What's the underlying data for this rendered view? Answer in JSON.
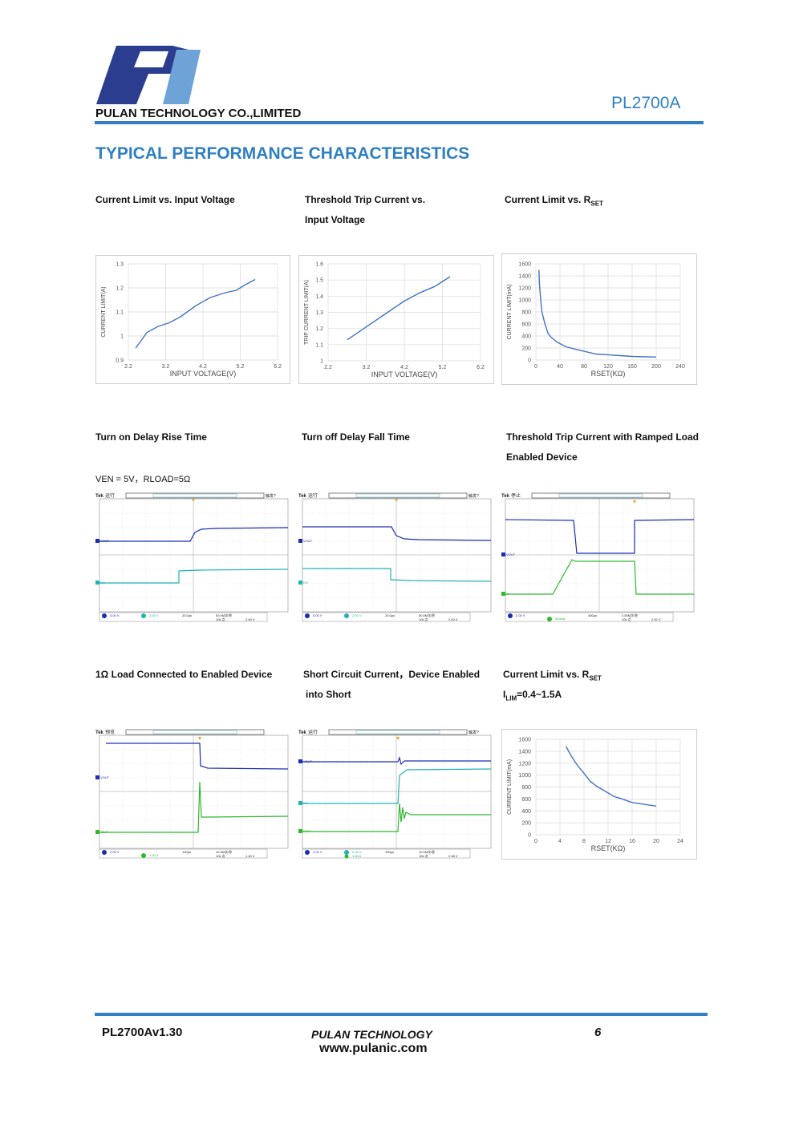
{
  "header": {
    "company": "PULAN TECHNOLOGY CO.,LIMITED",
    "part_number": "PL2700A",
    "brand_color": "#2f7fc1"
  },
  "section_title": "TYPICAL PERFORMANCE CHARACTERISTICS",
  "captions": {
    "c1": "Current Limit vs. Input Voltage",
    "c2a": "Threshold Trip Current vs.",
    "c2b": "Input Voltage",
    "c3": "Current Limit vs. R",
    "c3_sub": "SET",
    "c4": "Turn on Delay Rise Time",
    "c4_note": "VEN = 5V，RLOAD=5Ω",
    "c5": "Turn off Delay Fall Time",
    "c6a": "Threshold Trip Current with Ramped Load",
    "c6b": "Enabled Device",
    "c7": "1Ω Load Connected to Enabled Device",
    "c8a": "Short Circuit Current，Device Enabled",
    "c8b": "into Short",
    "c9": "Current Limit vs. R",
    "c9_sub": "SET",
    "c9_note": "I",
    "c9_note_sub": "LIM",
    "c9_note_rest": "=0.4~1.5A"
  },
  "chart_data": [
    {
      "type": "line",
      "xlabel": "INPUT VOLTAGE(V)",
      "ylabel": "CURRENT LIMIT(A)",
      "xticks": [
        "2.2",
        "3.2",
        "4.2",
        "5.2",
        "6.2"
      ],
      "yticks": [
        "0.9",
        "1",
        "1.1",
        "1.2",
        "1.3"
      ],
      "xlim": [
        2.2,
        6.2
      ],
      "ylim": [
        0.9,
        1.3
      ],
      "x": [
        2.4,
        2.7,
        3.0,
        3.3,
        3.6,
        4.0,
        4.4,
        4.8,
        5.1,
        5.3,
        5.6
      ],
      "y": [
        0.95,
        1.015,
        1.04,
        1.055,
        1.08,
        1.125,
        1.16,
        1.18,
        1.19,
        1.21,
        1.235
      ]
    },
    {
      "type": "line",
      "xlabel": "INPUT VOLTAGE(V)",
      "ylabel": "TRIP CURRENT LIMIT(A)",
      "xticks": [
        "2.2",
        "3.2",
        "4.2",
        "5.2",
        "6.2"
      ],
      "yticks": [
        "1",
        "1.1",
        "1.2",
        "1.3",
        "1.4",
        "1.5",
        "1.6"
      ],
      "xlim": [
        2.2,
        6.2
      ],
      "ylim": [
        1.0,
        1.6
      ],
      "x": [
        2.7,
        3.2,
        3.7,
        4.2,
        4.6,
        5.0,
        5.4
      ],
      "y": [
        1.13,
        1.21,
        1.29,
        1.37,
        1.42,
        1.46,
        1.52
      ]
    },
    {
      "type": "line",
      "xlabel": "RSET(KΩ)",
      "ylabel": "CURRENT LIMIT(mA)",
      "xticks": [
        "0",
        "40",
        "80",
        "120",
        "160",
        "200",
        "240"
      ],
      "yticks": [
        "0",
        "200",
        "400",
        "600",
        "800",
        "1000",
        "1200",
        "1400",
        "1600"
      ],
      "xlim": [
        0,
        240
      ],
      "ylim": [
        0,
        1600
      ],
      "x": [
        5,
        6,
        8,
        10,
        15,
        20,
        25,
        35,
        50,
        70,
        100,
        130,
        160,
        200
      ],
      "y": [
        1500,
        1250,
        1000,
        800,
        600,
        450,
        380,
        300,
        220,
        170,
        100,
        80,
        60,
        50
      ]
    },
    {
      "type": "line",
      "xlabel": "RSET(KΩ)",
      "ylabel": "CURRENT LIMIT(mA)",
      "xticks": [
        "0",
        "4",
        "8",
        "12",
        "16",
        "20",
        "24"
      ],
      "yticks": [
        "0",
        "200",
        "400",
        "600",
        "800",
        "1000",
        "1200",
        "1400",
        "1600"
      ],
      "xlim": [
        0,
        24
      ],
      "ylim": [
        0,
        1600
      ],
      "x": [
        5,
        6,
        7,
        8,
        9,
        10,
        11,
        12,
        13,
        14,
        16,
        18,
        20
      ],
      "y": [
        1480,
        1300,
        1150,
        1030,
        900,
        820,
        760,
        700,
        640,
        610,
        540,
        510,
        480
      ]
    }
  ],
  "scopes": {
    "s1": {
      "status": "运行",
      "trig": "触发?",
      "ch1": "VOUT",
      "ch2": "EN",
      "ch1_scale": "5.00 V",
      "ch2_scale": "2.00 V",
      "time": "20.0μs",
      "rate": "50.0M次/秒",
      "pts": "10k 点",
      "level": "2.00 V"
    },
    "s2": {
      "status": "运行",
      "trig": "触发?",
      "ch1": "VOUT",
      "ch2": "EN",
      "ch1_scale": "5.00 V",
      "ch2_scale": "2.00 V",
      "time": "20.0μs",
      "rate": "50.0M次/秒",
      "pts": "10k 点",
      "level": "2.00 V"
    },
    "s3": {
      "status": "停止",
      "trig": "",
      "ch1": "VOUT",
      "ch4": "IL",
      "ch1_scale": "2.00 V",
      "ch4_scale": "500mA",
      "time": "400μs",
      "rate": "2.50M次/秒",
      "pts": "10k 点",
      "level": "2.92 V"
    },
    "s4": {
      "status": "预览",
      "trig": "",
      "ch1": "VOUT",
      "ch4": "IOUT",
      "ch1_scale": "2.00 V",
      "ch4_scale": "1.00 A",
      "time": "100μs",
      "rate": "10.0M次/秒",
      "pts": "10k 点",
      "level": "1.40 V"
    },
    "s5": {
      "status": "运行",
      "trig": "触发?",
      "ch1": "VOUT",
      "ch2": "EN",
      "ch4": "IOUT",
      "ch1_scale": "2.00 V",
      "ch2_scale": "2.00 V",
      "ch4_scale": "1.00 A",
      "time": "100μs",
      "rate": "10.0M次/秒",
      "pts": "10k 点",
      "level": "2.48 V"
    }
  },
  "scope_colors": {
    "ch1": "#1a2db0",
    "ch2": "#1fb3b3",
    "ch4": "#2db82d",
    "trig": "#f0a020"
  },
  "footer": {
    "doc": "PL2700Av1.30",
    "company": "PULAN TECHNOLOGY",
    "url": "www.pulanic.com",
    "page": "6"
  }
}
